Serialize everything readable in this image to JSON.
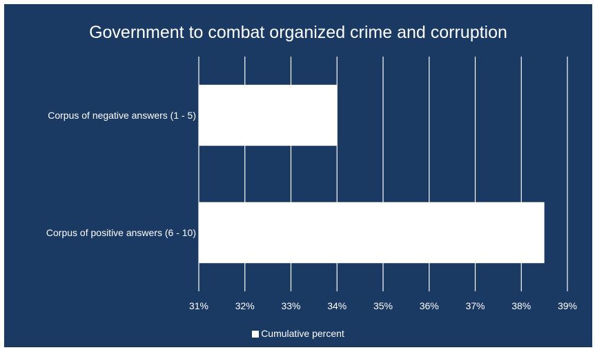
{
  "chart_data": {
    "type": "bar",
    "orientation": "horizontal",
    "title": "Government to combat organized crime and corruption",
    "xlabel": "",
    "ylabel": "",
    "categories": [
      "Corpus of negative answers (1 - 5)",
      "Corpus of positive answers (6 - 10)"
    ],
    "series": [
      {
        "name": "Cumulative percent",
        "values": [
          34.0,
          38.5
        ],
        "color": "#ffffff"
      }
    ],
    "xlim": [
      31,
      39
    ],
    "xticks": [
      "31%",
      "32%",
      "33%",
      "34%",
      "35%",
      "36%",
      "37%",
      "38%",
      "39%"
    ],
    "grid": "vertical",
    "legend_position": "bottom",
    "background_color": "#1a3963",
    "text_color": "#ffffff"
  }
}
